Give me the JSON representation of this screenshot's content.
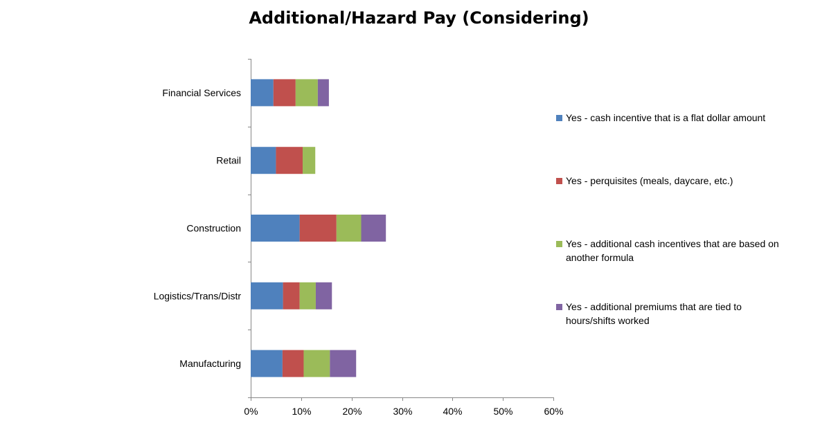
{
  "chart_data": {
    "type": "bar",
    "orientation": "horizontal",
    "stacked": true,
    "title": "Additional/Hazard Pay (Considering)",
    "categories": [
      "Financial Services",
      "Retail",
      "Construction",
      "Logistics/Trans/Distr",
      "Manufacturing"
    ],
    "series": [
      {
        "name": "Yes - cash incentive that is a flat dollar amount",
        "color": "#4F81BD",
        "values": [
          4.5,
          5.0,
          9.7,
          6.4,
          6.3
        ]
      },
      {
        "name": "Yes - perquisites (meals, daycare, etc.)",
        "color": "#C0504D",
        "values": [
          4.4,
          5.3,
          7.3,
          3.3,
          4.2
        ]
      },
      {
        "name": "Yes - additional cash incentives that are based on another formula",
        "color": "#9BBB59",
        "values": [
          4.4,
          2.5,
          4.9,
          3.2,
          5.2
        ]
      },
      {
        "name": "Yes - additional premiums that are tied to hours/shifts worked",
        "color": "#8064A2",
        "values": [
          2.2,
          0,
          4.9,
          3.2,
          5.2
        ]
      }
    ],
    "xaxis": {
      "ticks": [
        "0%",
        "10%",
        "20%",
        "30%",
        "40%",
        "50%",
        "60%"
      ],
      "min": 0,
      "max": 60
    },
    "grid": false,
    "legend_position": "right"
  }
}
